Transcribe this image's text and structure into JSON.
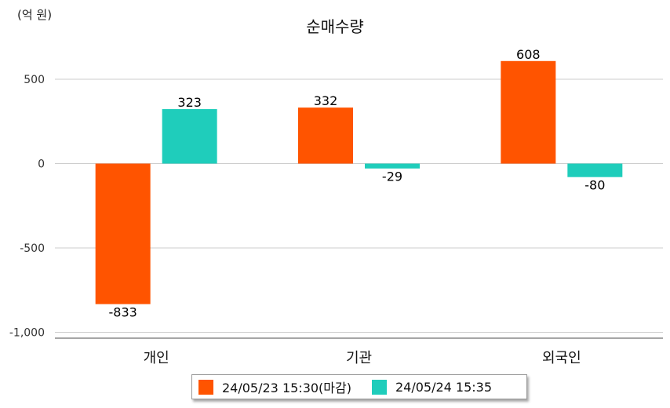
{
  "chart_data": {
    "type": "bar",
    "title": "순매수량",
    "unit_label": "(억 원)",
    "categories": [
      "개인",
      "기관",
      "외국인"
    ],
    "series": [
      {
        "name": "24/05/23 15:30(마감)",
        "color": "#ff5400",
        "values": [
          -833,
          332,
          608
        ]
      },
      {
        "name": "24/05/24 15:35",
        "color": "#1fcdbb",
        "values": [
          323,
          -29,
          -80
        ]
      }
    ],
    "yticks": [
      500,
      0,
      -500,
      -1000
    ],
    "ytick_labels": [
      "500",
      "0",
      "-500",
      "-1,000"
    ],
    "ylim": [
      -1050,
      740
    ],
    "grid": true,
    "legend_position": "bottom"
  }
}
